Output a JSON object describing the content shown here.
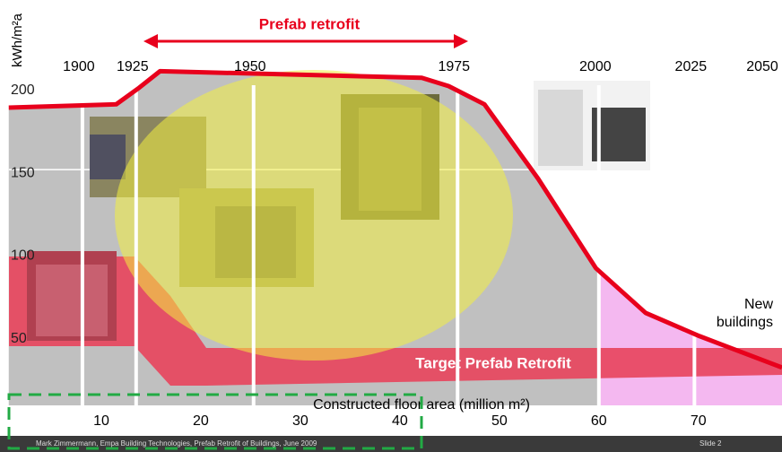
{
  "chart_data": {
    "type": "line",
    "title": "Prefab retrofit",
    "y_label": "kWh/m²a",
    "x_label": "Constructed floor area (million m²)",
    "x": [
      0.7,
      11.5,
      13.8,
      15.9,
      42.2,
      44.9,
      48.5,
      53.9,
      59.7,
      64.7,
      70.1,
      78.4
    ],
    "series": [
      {
        "color": "#e8001c",
        "values": [
          195,
          197,
          207,
          217,
          213,
          208,
          197,
          152,
          98,
          71,
          57,
          38
        ]
      }
    ],
    "xlim": [
      0,
      78.4
    ],
    "ylim": [
      0,
      260
    ],
    "xticks": [
      10,
      20,
      30,
      40,
      50,
      60,
      70
    ],
    "yticks": [
      50,
      100,
      150,
      200
    ],
    "x2ticks": [
      {
        "value": 8.1,
        "label": "1900"
      },
      {
        "value": 13.5,
        "label": "1925"
      },
      {
        "value": 25.3,
        "label": "1950"
      },
      {
        "value": 45.8,
        "label": "1975"
      },
      {
        "value": 60,
        "label": "2000"
      },
      {
        "value": 69.6,
        "label": "2025"
      }
    ],
    "x2_end_label": "2050",
    "band_label": "Target Prefab Retrofit",
    "new_label": [
      "New",
      "buildings"
    ],
    "footer": "Mark Zimmermann, Empa Building Technologies, Prefab Retrofit of Buildings, June 2009",
    "slide": "Slide 2"
  }
}
